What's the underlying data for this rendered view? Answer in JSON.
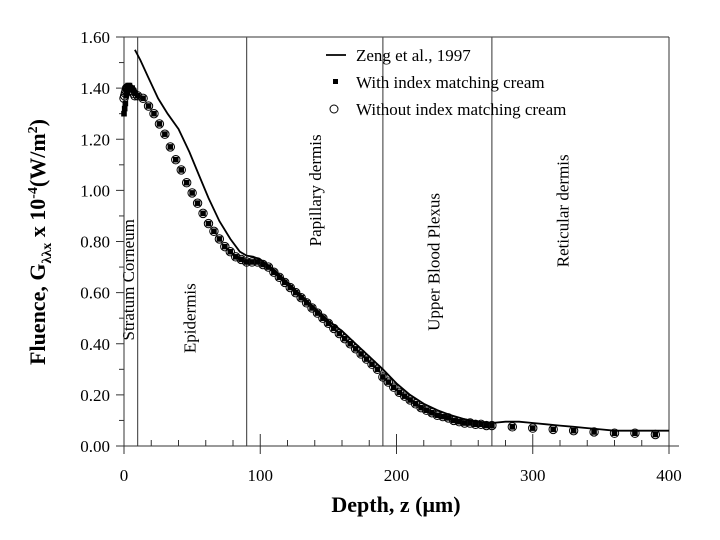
{
  "chart_data": {
    "type": "scatter",
    "title": "",
    "xlabel": "Depth, z (μm)",
    "ylabel": {
      "prefix": "Fluence, G",
      "subscript": "λλx",
      "middle": " x 10",
      "superscript": "-4",
      "suffix": "(W/m",
      "suffix_sup": "2",
      "close": ")"
    },
    "xlim": [
      0,
      400
    ],
    "ylim": [
      0,
      1.6
    ],
    "x_ticks": [
      "0",
      "100",
      "200",
      "300",
      "400"
    ],
    "x_tick_values": [
      0,
      100,
      200,
      300,
      400
    ],
    "x_minor_step": 20,
    "y_ticks": [
      "0.00",
      "0.20",
      "0.40",
      "0.60",
      "0.80",
      "1.00",
      "1.20",
      "1.40",
      "1.60"
    ],
    "y_tick_values": [
      0,
      0.2,
      0.4,
      0.6,
      0.8,
      1.0,
      1.2,
      1.4,
      1.6
    ],
    "y_minor_step": 0.1,
    "grid": false,
    "layer_boundaries": [
      10,
      90,
      190,
      270
    ],
    "layers": [
      {
        "label": "Stratum Corneum",
        "x": 3,
        "y": 0.65
      },
      {
        "label": "Epidermis",
        "x": 48,
        "y": 0.5
      },
      {
        "label": "Papillary dermis",
        "x": 140,
        "y": 1.0
      },
      {
        "label": "Upper Blood Plexus",
        "x": 227,
        "y": 0.72
      },
      {
        "label": "Reticular dermis",
        "x": 322,
        "y": 0.92
      }
    ],
    "legend": {
      "position": "top-right",
      "entries": [
        {
          "label": "Zeng et al., 1997",
          "marker": "line"
        },
        {
          "label": "With index matching cream",
          "marker": "filled-square"
        },
        {
          "label": "Without index matching cream",
          "marker": "open-circle"
        }
      ]
    },
    "series": [
      {
        "name": "Zeng et al., 1997",
        "style": "line",
        "x": [
          8,
          12,
          18,
          25,
          32,
          40,
          48,
          55,
          62,
          70,
          78,
          85,
          90,
          95,
          100,
          110,
          120,
          130,
          140,
          150,
          160,
          170,
          180,
          190,
          200,
          210,
          220,
          230,
          240,
          250,
          260,
          270,
          280,
          290,
          300,
          310,
          320,
          330,
          340,
          350,
          360,
          370,
          380,
          390,
          400
        ],
        "y": [
          1.55,
          1.51,
          1.44,
          1.36,
          1.3,
          1.24,
          1.15,
          1.06,
          0.97,
          0.88,
          0.81,
          0.76,
          0.745,
          0.74,
          0.73,
          0.69,
          0.64,
          0.59,
          0.54,
          0.49,
          0.45,
          0.4,
          0.35,
          0.3,
          0.245,
          0.2,
          0.165,
          0.14,
          0.12,
          0.105,
          0.095,
          0.09,
          0.095,
          0.095,
          0.09,
          0.085,
          0.08,
          0.075,
          0.07,
          0.065,
          0.06,
          0.06,
          0.06,
          0.06,
          0.06
        ]
      },
      {
        "name": "With index matching cream",
        "style": "filled-square",
        "x": [
          0,
          0.5,
          1,
          1.5,
          2,
          2.5,
          3,
          4,
          5,
          6,
          7,
          8,
          10,
          14,
          18,
          22,
          26,
          30,
          34,
          38,
          42,
          46,
          50,
          54,
          58,
          62,
          66,
          70,
          74,
          78,
          82,
          86,
          90,
          94,
          98,
          102,
          106,
          110,
          114,
          118,
          122,
          126,
          130,
          134,
          138,
          142,
          146,
          150,
          154,
          158,
          162,
          166,
          170,
          174,
          178,
          182,
          186,
          190,
          194,
          198,
          202,
          206,
          210,
          214,
          218,
          222,
          226,
          230,
          234,
          238,
          242,
          246,
          250,
          254,
          258,
          262,
          266,
          270,
          285,
          300,
          315,
          330,
          345,
          360,
          375,
          390
        ],
        "y": [
          1.3,
          1.32,
          1.34,
          1.37,
          1.39,
          1.4,
          1.41,
          1.41,
          1.4,
          1.4,
          1.39,
          1.38,
          1.37,
          1.36,
          1.33,
          1.3,
          1.26,
          1.22,
          1.17,
          1.12,
          1.08,
          1.03,
          0.99,
          0.95,
          0.91,
          0.87,
          0.84,
          0.81,
          0.78,
          0.76,
          0.74,
          0.73,
          0.72,
          0.72,
          0.72,
          0.71,
          0.7,
          0.68,
          0.66,
          0.64,
          0.62,
          0.6,
          0.58,
          0.56,
          0.54,
          0.52,
          0.5,
          0.48,
          0.46,
          0.44,
          0.42,
          0.4,
          0.38,
          0.36,
          0.34,
          0.32,
          0.3,
          0.27,
          0.25,
          0.23,
          0.21,
          0.195,
          0.18,
          0.165,
          0.15,
          0.14,
          0.13,
          0.12,
          0.115,
          0.11,
          0.1,
          0.095,
          0.09,
          0.09,
          0.085,
          0.085,
          0.08,
          0.08,
          0.075,
          0.07,
          0.065,
          0.06,
          0.055,
          0.05,
          0.05,
          0.045
        ]
      },
      {
        "name": "Without index matching cream",
        "style": "open-circle",
        "x": [
          0,
          0.5,
          1,
          1.5,
          2,
          2.5,
          3,
          4,
          5,
          6,
          7,
          8,
          10,
          14,
          18,
          22,
          26,
          30,
          34,
          38,
          42,
          46,
          50,
          54,
          58,
          62,
          66,
          70,
          74,
          78,
          82,
          86,
          90,
          94,
          98,
          102,
          106,
          110,
          114,
          118,
          122,
          126,
          130,
          134,
          138,
          142,
          146,
          150,
          154,
          158,
          162,
          166,
          170,
          174,
          178,
          182,
          186,
          190,
          194,
          198,
          202,
          206,
          210,
          214,
          218,
          222,
          226,
          230,
          234,
          238,
          242,
          246,
          250,
          254,
          258,
          262,
          266,
          270,
          285,
          300,
          315,
          330,
          345,
          360,
          375,
          390
        ],
        "y": [
          1.36,
          1.37,
          1.38,
          1.39,
          1.4,
          1.4,
          1.4,
          1.4,
          1.39,
          1.39,
          1.38,
          1.37,
          1.37,
          1.36,
          1.33,
          1.3,
          1.26,
          1.22,
          1.17,
          1.12,
          1.08,
          1.03,
          0.99,
          0.95,
          0.91,
          0.87,
          0.84,
          0.81,
          0.78,
          0.76,
          0.74,
          0.73,
          0.72,
          0.72,
          0.72,
          0.71,
          0.7,
          0.68,
          0.66,
          0.64,
          0.62,
          0.6,
          0.58,
          0.56,
          0.54,
          0.52,
          0.5,
          0.48,
          0.46,
          0.44,
          0.42,
          0.4,
          0.38,
          0.36,
          0.34,
          0.32,
          0.3,
          0.27,
          0.25,
          0.23,
          0.21,
          0.195,
          0.18,
          0.165,
          0.15,
          0.14,
          0.13,
          0.12,
          0.115,
          0.11,
          0.1,
          0.095,
          0.09,
          0.09,
          0.085,
          0.085,
          0.08,
          0.08,
          0.075,
          0.07,
          0.065,
          0.06,
          0.055,
          0.05,
          0.05,
          0.045
        ]
      }
    ],
    "colors": {
      "line": "#000000",
      "marker_fill": "#000000",
      "boundary": "#555555",
      "axis": "#333333"
    }
  }
}
